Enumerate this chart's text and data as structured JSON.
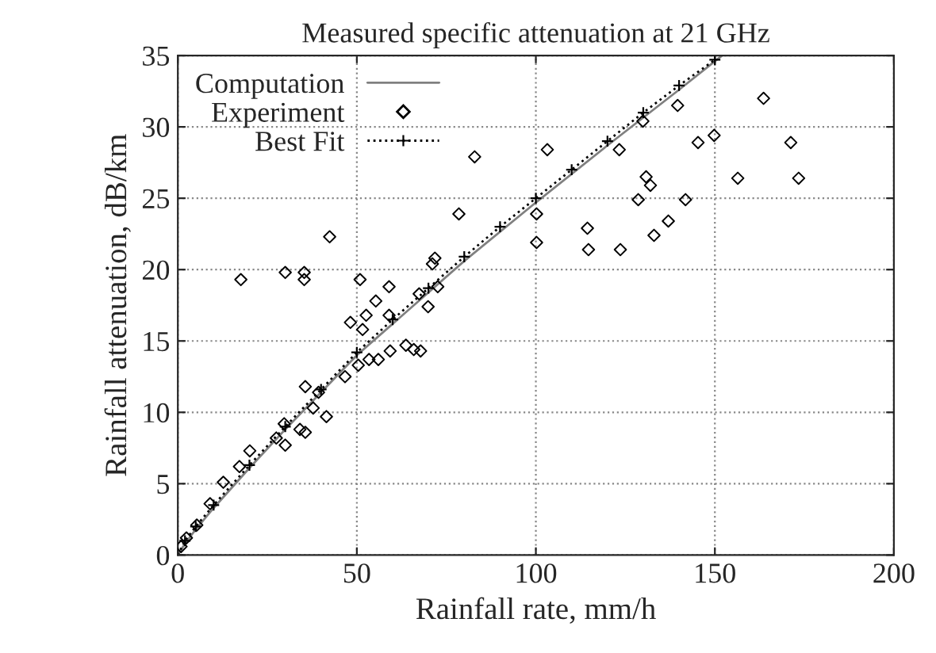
{
  "chart_data": {
    "type": "line",
    "title": "Measured specific attenuation at 21 GHz",
    "xlabel": "Rainfall rate, mm/h",
    "ylabel": "Rainfall attenuation, dB/km",
    "xlim": [
      0,
      200
    ],
    "ylim": [
      0,
      35
    ],
    "xticks": [
      0,
      50,
      100,
      150,
      200
    ],
    "yticks": [
      0,
      5,
      10,
      15,
      20,
      25,
      30,
      35
    ],
    "grid": true,
    "legend": "top left",
    "series": [
      {
        "name": "Computation",
        "color": "#808080",
        "marker": "none",
        "line_style": "solid",
        "x": [
          0,
          2,
          5,
          10,
          20,
          30,
          40,
          50,
          60,
          80,
          100,
          120,
          140,
          152
        ],
        "values": [
          0,
          0.8,
          1.8,
          3.3,
          6.1,
          8.8,
          11.4,
          14.0,
          16.2,
          20.6,
          24.7,
          28.7,
          32.6,
          35
        ]
      },
      {
        "name": "Experiment",
        "type": "scatter",
        "color": "#000000",
        "marker": "diamond",
        "x": [
          82.9,
          103.2,
          78.5,
          100.2,
          100.2,
          114.4,
          114.7,
          123.6,
          123.3,
          129.9,
          130.8,
          132,
          128.6,
          133,
          137,
          141.8,
          139.6,
          145.3,
          149.8,
          156.4,
          163.6,
          171.2,
          173.4,
          17.6,
          30.0,
          35.3,
          35.3,
          42.4,
          50.9,
          59,
          55.3,
          52.6,
          48.2,
          51.6,
          59,
          71.8,
          71.1,
          67.4,
          69.9,
          63.7,
          65.9,
          67.8,
          59.3,
          56,
          53.4,
          50.4,
          46.7,
          41.5,
          35.6,
          34.1,
          30,
          39.3,
          35.6,
          37.8,
          29.7,
          27.5,
          20.1,
          17.2,
          12.7,
          9,
          5.3,
          2.4,
          0.9,
          72.6
        ],
        "values": [
          27.9,
          28.4,
          23.9,
          23.9,
          21.9,
          22.9,
          21.4,
          21.4,
          28.4,
          30.4,
          26.5,
          25.9,
          24.9,
          22.4,
          23.4,
          24.9,
          31.5,
          28.9,
          29.4,
          26.4,
          32.0,
          28.9,
          26.4,
          19.3,
          19.8,
          19.8,
          19.3,
          22.3,
          19.3,
          18.8,
          17.8,
          16.8,
          16.3,
          15.8,
          16.8,
          20.8,
          20.4,
          18.3,
          17.4,
          14.7,
          14.4,
          14.3,
          14.3,
          13.7,
          13.7,
          13.3,
          12.5,
          9.7,
          8.6,
          8.8,
          7.7,
          11.4,
          11.8,
          10.3,
          9.2,
          8.2,
          7.3,
          6.2,
          5.1,
          3.6,
          2.1,
          1.2,
          0.6,
          18.8
        ]
      },
      {
        "name": "Best Fit",
        "color": "#000000",
        "marker": "cross",
        "line_style": "dotted",
        "x": [
          0,
          2,
          5,
          10,
          20,
          30,
          40,
          50,
          60,
          70,
          80,
          90,
          100,
          110,
          120,
          130,
          140,
          150
        ],
        "values": [
          0,
          1.0,
          2.0,
          3.5,
          6.3,
          9.0,
          11.6,
          14.2,
          16.5,
          18.7,
          20.9,
          23.0,
          25.0,
          27.0,
          29.0,
          31.0,
          32.9,
          34.7
        ]
      }
    ]
  }
}
